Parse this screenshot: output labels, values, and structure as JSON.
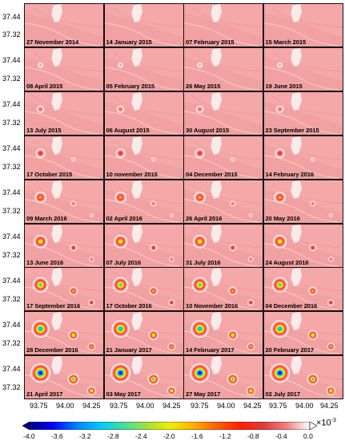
{
  "panels": [
    {
      "date": "27 November 2014",
      "level": 0
    },
    {
      "date": "14 January 2015",
      "level": 0
    },
    {
      "date": "07 February 2015",
      "level": 0
    },
    {
      "date": "15 March 2015",
      "level": 0
    },
    {
      "date": "08 April 2015",
      "level": 1
    },
    {
      "date": "05 February 2015",
      "level": 1
    },
    {
      "date": "26 May 2015",
      "level": 1
    },
    {
      "date": "19 June 2015",
      "level": 1
    },
    {
      "date": "13 July 2015",
      "level": 2
    },
    {
      "date": "06 August 2015",
      "level": 2
    },
    {
      "date": "30 August 2015",
      "level": 2
    },
    {
      "date": "23 September 2015",
      "level": 2
    },
    {
      "date": "17 October 2015",
      "level": 3
    },
    {
      "date": "10 november 2015",
      "level": 3
    },
    {
      "date": "04 December 2015",
      "level": 3
    },
    {
      "date": "14 February 2016",
      "level": 3
    },
    {
      "date": "09 March 2016",
      "level": 4
    },
    {
      "date": "02 April 2016",
      "level": 4
    },
    {
      "date": "26 April 2016",
      "level": 4
    },
    {
      "date": "20 May 2016",
      "level": 4
    },
    {
      "date": "13 June 2016",
      "level": 5
    },
    {
      "date": "07 July 2016",
      "level": 5
    },
    {
      "date": "31 July 2016",
      "level": 5
    },
    {
      "date": "24 August 2016",
      "level": 5
    },
    {
      "date": "17 September 2016",
      "level": 6
    },
    {
      "date": "17 October 2016",
      "level": 6
    },
    {
      "date": "10 November 2016",
      "level": 6
    },
    {
      "date": "04 December 2016",
      "level": 6
    },
    {
      "date": "28 December 2016",
      "level": 7
    },
    {
      "date": "21 January 2017",
      "level": 7
    },
    {
      "date": "14 February 2017",
      "level": 7
    },
    {
      "date": "20 February 2017",
      "level": 7
    },
    {
      "date": "21 April 2017",
      "level": 8
    },
    {
      "date": "03 May 2017",
      "level": 8
    },
    {
      "date": "27 May 2017",
      "level": 8
    },
    {
      "date": "02 July 2017",
      "level": 8
    }
  ],
  "y_ticks": [
    "37.44",
    "37.32"
  ],
  "x_ticks": [
    "93.75",
    "94.00",
    "94.25",
    "93.75",
    "94.00",
    "94.25",
    "93.75",
    "94.00",
    "94.25",
    "93.75",
    "94.00",
    "94.25"
  ],
  "colorbar": {
    "ticks": [
      "-4.0",
      "-3.6",
      "-3.2",
      "-2.8",
      "-2.4",
      "-2.0",
      "-1.6",
      "-1.2",
      "-0.8",
      "-0.4",
      "0.0"
    ],
    "unit_base": "×10",
    "unit_exp": "-3",
    "min": -4.0,
    "max": 0.0,
    "colors": [
      "#00008b",
      "#0000ff",
      "#0080ff",
      "#00c8ff",
      "#40e0a0",
      "#a0e040",
      "#f0f000",
      "#ffb000",
      "#ff6000",
      "#ff2000",
      "#e03a3a",
      "#f08080",
      "#ffffff"
    ]
  }
}
